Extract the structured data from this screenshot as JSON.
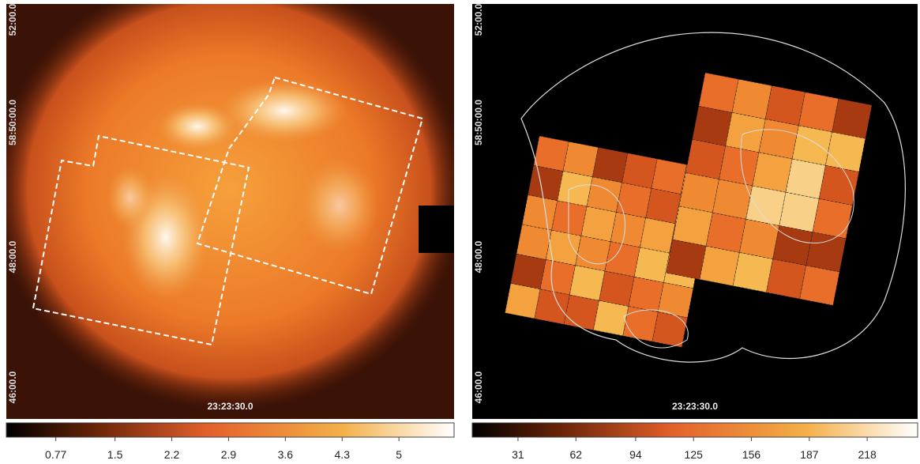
{
  "panels": [
    {
      "y_labels": [
        "52:00.0",
        "58:50:00.0",
        "48:00.0",
        "46:00.0"
      ],
      "x_label": "23:23:30.0",
      "colorbar": {
        "range": [
          0.16,
          5.68
        ],
        "ticks": [
          0.77,
          1.5,
          2.2,
          2.9,
          3.6,
          4.3,
          5
        ]
      }
    },
    {
      "y_labels": [
        "52:00.0",
        "58:50:00.0",
        "48:00.0",
        "46:00.0"
      ],
      "x_label": "23:23:30.0",
      "colorbar": {
        "range": [
          6.5,
          245
        ],
        "ticks": [
          31,
          62,
          94,
          125,
          156,
          187,
          218
        ]
      }
    }
  ]
}
